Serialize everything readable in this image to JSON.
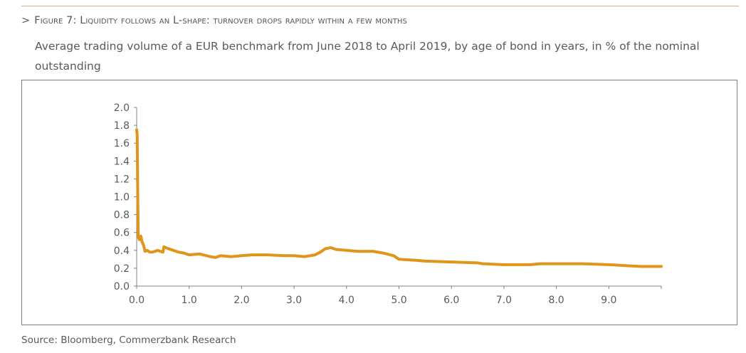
{
  "figure": {
    "marker": ">",
    "title": "Figure 7: Liquidity follows an L-shape: turnover drops rapidly within a few months",
    "subtitle": "Average trading volume of a EUR benchmark from June 2018 to April 2019, by age of bond in years, in % of the nominal outstanding",
    "source": "Source: Bloomberg, Commerzbank Research"
  },
  "colors": {
    "line": "#e0941a",
    "rule": "#d8b96b",
    "axis": "#808080",
    "text": "#595959"
  },
  "chart_data": {
    "type": "line",
    "title": "",
    "xlabel": "",
    "ylabel": "",
    "xlim": [
      0,
      10
    ],
    "ylim": [
      0,
      2.0
    ],
    "x_ticks": [
      "0.0",
      "1.0",
      "2.0",
      "3.0",
      "4.0",
      "5.0",
      "6.0",
      "7.0",
      "8.0",
      "9.0"
    ],
    "y_ticks": [
      "0.0",
      "0.2",
      "0.4",
      "0.6",
      "0.8",
      "1.0",
      "1.2",
      "1.4",
      "1.6",
      "1.8",
      "2.0"
    ],
    "grid": false,
    "legend": "none",
    "series": [
      {
        "x": [
          0.0,
          0.01,
          0.02,
          0.03,
          0.05,
          0.08,
          0.1,
          0.13,
          0.16,
          0.2,
          0.25,
          0.3,
          0.4,
          0.5,
          0.52,
          0.6,
          0.7,
          0.8,
          0.9,
          1.0,
          1.2,
          1.4,
          1.5,
          1.6,
          1.8,
          2.0,
          2.2,
          2.5,
          2.8,
          3.0,
          3.2,
          3.4,
          3.5,
          3.6,
          3.7,
          3.8,
          4.0,
          4.2,
          4.5,
          4.7,
          4.9,
          5.0,
          5.3,
          5.5,
          6.0,
          6.5,
          6.6,
          7.0,
          7.5,
          7.7,
          8.0,
          8.5,
          9.0,
          9.3,
          9.6,
          10.0
        ],
        "y": [
          1.75,
          1.7,
          1.0,
          0.55,
          0.52,
          0.56,
          0.5,
          0.46,
          0.39,
          0.4,
          0.38,
          0.38,
          0.4,
          0.38,
          0.44,
          0.42,
          0.4,
          0.38,
          0.37,
          0.35,
          0.36,
          0.33,
          0.32,
          0.34,
          0.33,
          0.34,
          0.35,
          0.35,
          0.34,
          0.34,
          0.33,
          0.35,
          0.38,
          0.42,
          0.43,
          0.41,
          0.4,
          0.39,
          0.39,
          0.37,
          0.34,
          0.3,
          0.29,
          0.28,
          0.27,
          0.26,
          0.25,
          0.24,
          0.24,
          0.25,
          0.25,
          0.25,
          0.24,
          0.23,
          0.22,
          0.22
        ]
      }
    ]
  }
}
